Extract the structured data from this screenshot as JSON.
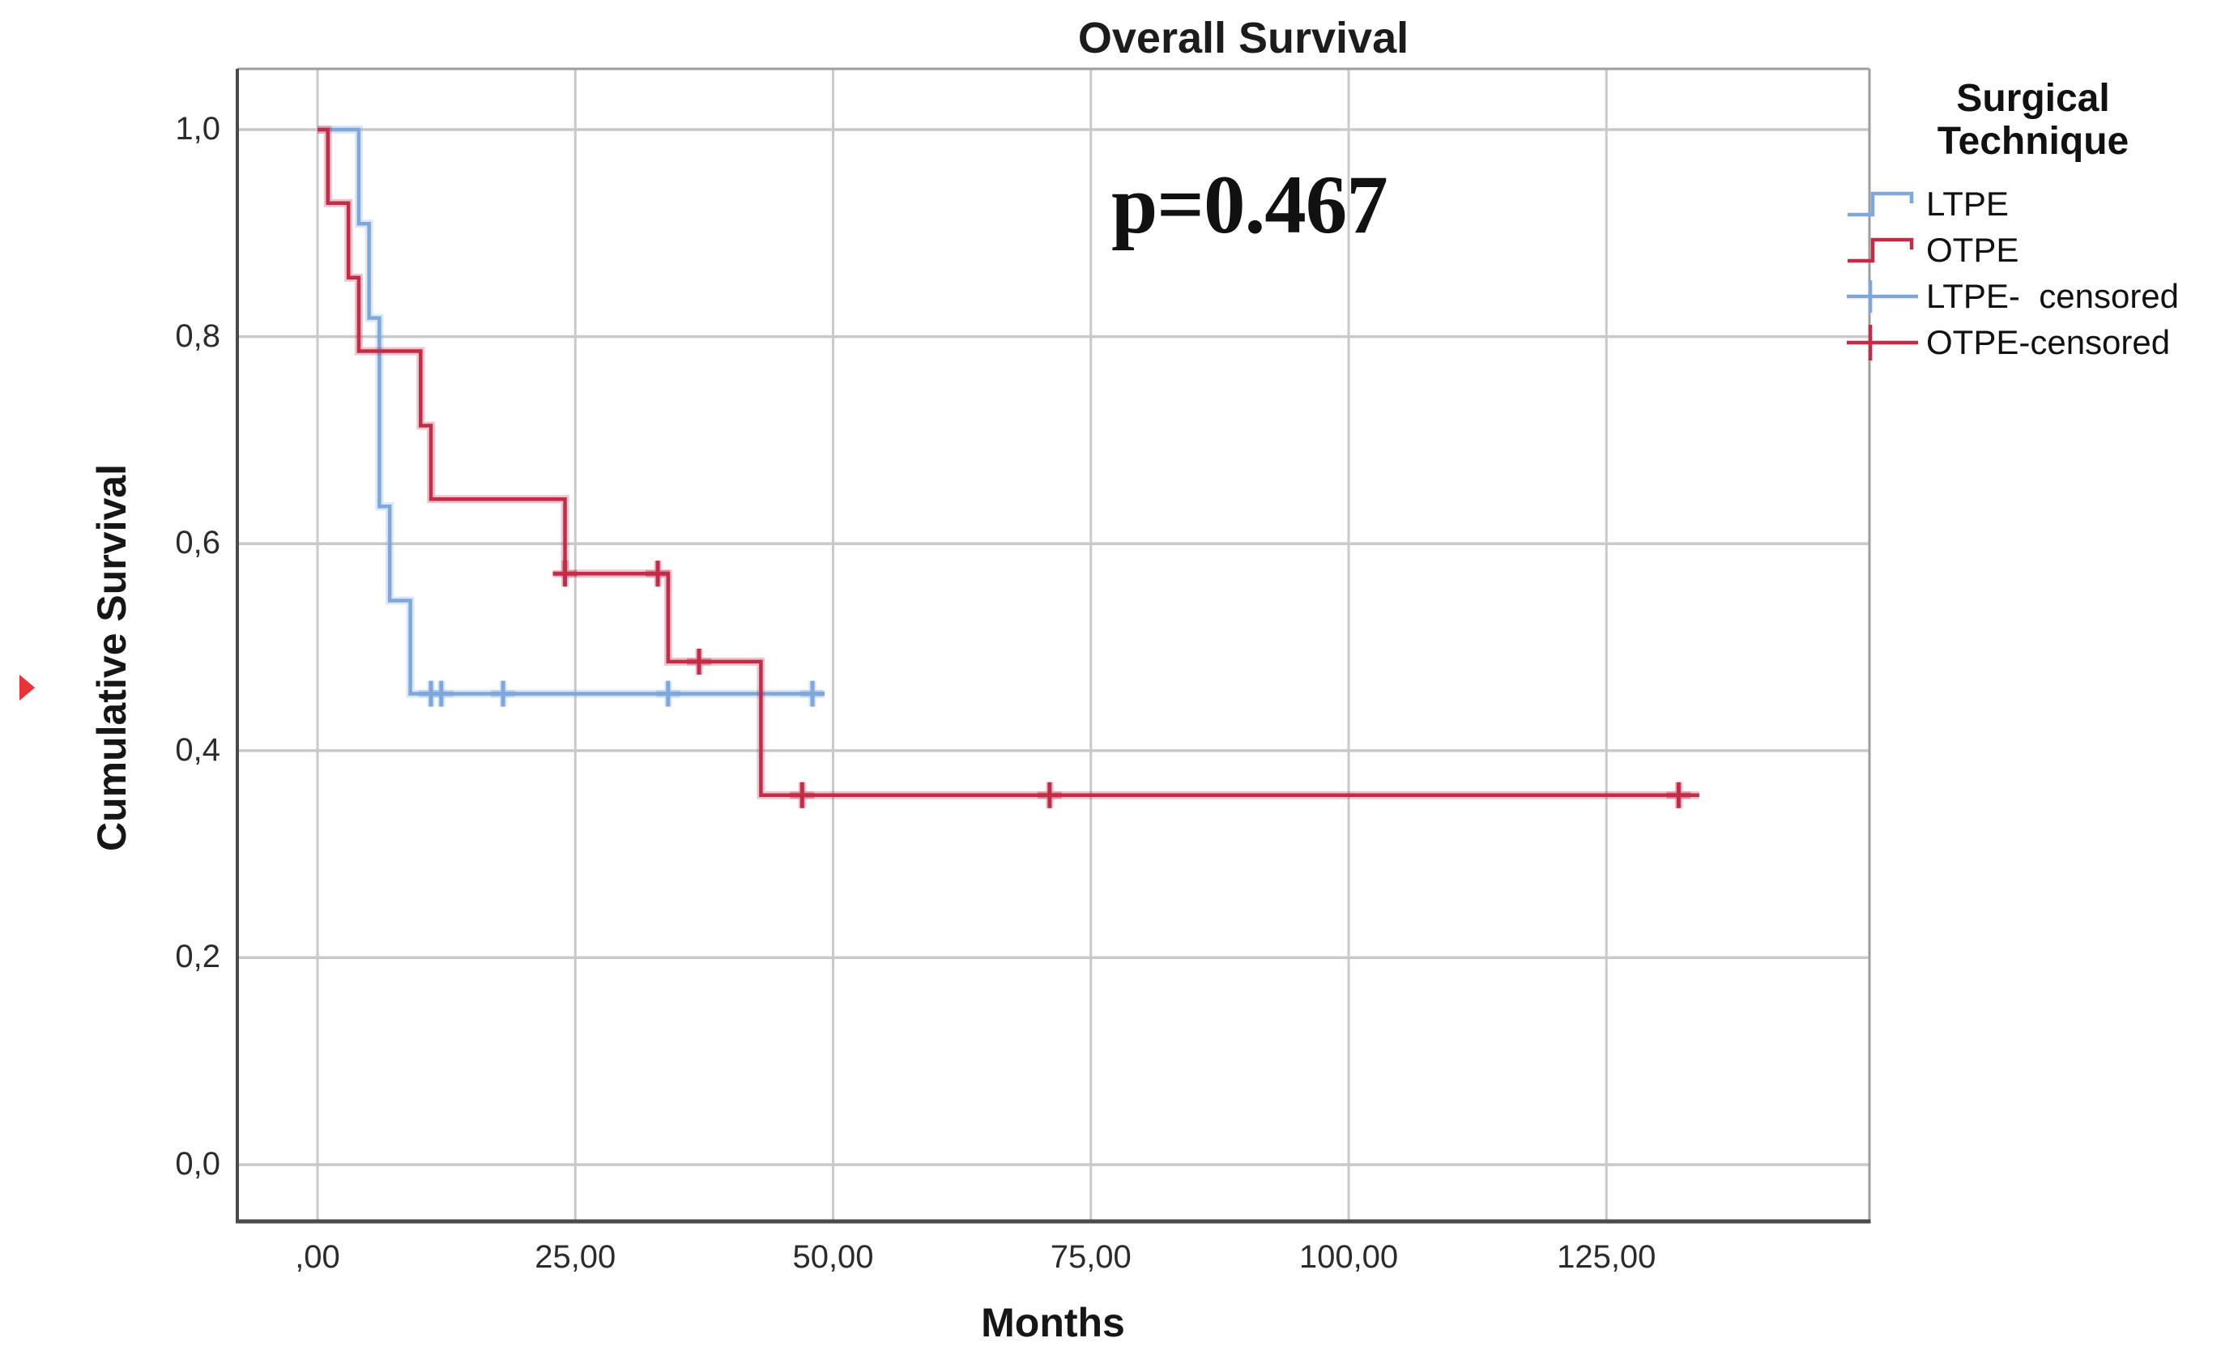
{
  "chart_data": {
    "type": "line",
    "subtype": "kaplan-meier-step",
    "title": "Overall Survival",
    "annotation": "p=0.467",
    "xlabel": "Months",
    "ylabel": "Cumulative Survival",
    "grid": true,
    "legend_position": "right",
    "xlim": [
      -7.8,
      150.5
    ],
    "ylim": [
      -0.055,
      1.06
    ],
    "x_ticks": {
      "values": [
        0,
        25,
        50,
        75,
        100,
        125
      ],
      "labels": [
        ",00",
        "25,00",
        "50,00",
        "75,00",
        "100,00",
        "125,00"
      ]
    },
    "y_ticks": {
      "values": [
        0.0,
        0.2,
        0.4,
        0.6,
        0.8,
        1.0
      ],
      "labels": [
        "0,0",
        "0,2",
        "0,4",
        "0,6",
        "0,8",
        "1,0"
      ]
    },
    "series": [
      {
        "name": "LTPE",
        "color": "#7EA8DC",
        "steps": [
          [
            0,
            1.0
          ],
          [
            4,
            0.909
          ],
          [
            5,
            0.818
          ],
          [
            6,
            0.636
          ],
          [
            7,
            0.545
          ],
          [
            9,
            0.455
          ]
        ],
        "line_end": 49,
        "censored": [
          [
            11,
            0.455
          ],
          [
            12,
            0.455
          ],
          [
            18,
            0.455
          ],
          [
            34,
            0.455
          ],
          [
            48,
            0.455
          ]
        ]
      },
      {
        "name": "OTPE",
        "color": "#C42B47",
        "steps": [
          [
            0,
            1.0
          ],
          [
            1,
            0.929
          ],
          [
            3,
            0.857
          ],
          [
            4,
            0.786
          ],
          [
            10,
            0.714
          ],
          [
            11,
            0.643
          ],
          [
            24,
            0.571
          ],
          [
            34,
            0.486
          ],
          [
            43,
            0.357
          ]
        ],
        "line_end": 134,
        "censored": [
          [
            24,
            0.571
          ],
          [
            33,
            0.571
          ],
          [
            37,
            0.486
          ],
          [
            47,
            0.357
          ],
          [
            71,
            0.357
          ],
          [
            132,
            0.357
          ]
        ]
      }
    ],
    "legend": {
      "title": "Surgical Technique",
      "entries": [
        {
          "label": "LTPE",
          "symbol": "step",
          "series": 0
        },
        {
          "label": "OTPE",
          "symbol": "step",
          "series": 1
        },
        {
          "label": "LTPE-  censored",
          "symbol": "plus-line",
          "series": 0
        },
        {
          "label": "OTPE-censored",
          "symbol": "plus-line",
          "series": 1
        }
      ]
    }
  },
  "colors": {
    "gridline": "#c9c9c9",
    "frame_light": "#9e9e9e",
    "axis_dark": "#4a4a4a",
    "text": "#1c1c1c",
    "marker_red": "#EA3238"
  },
  "marker": {
    "shape": "right-pointing-triangle"
  }
}
